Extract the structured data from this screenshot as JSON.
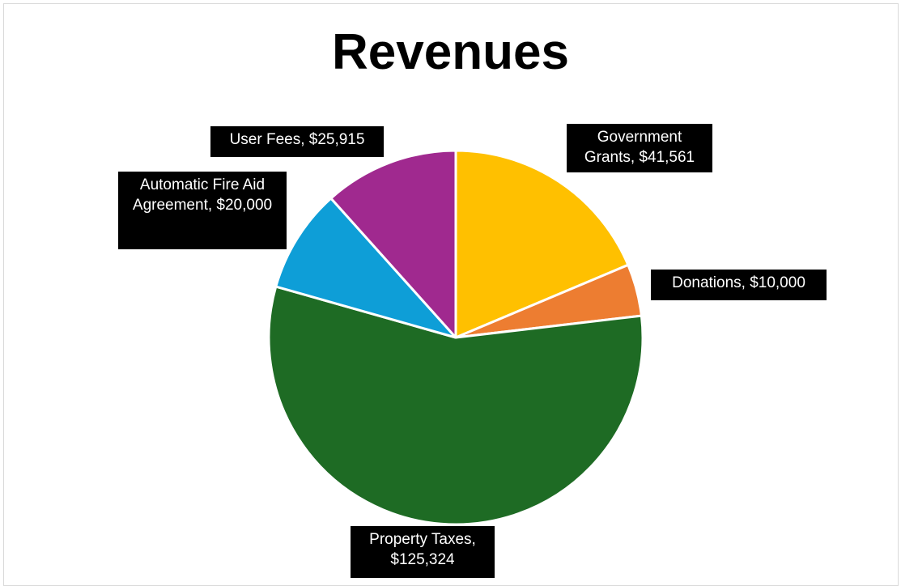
{
  "chart_data": {
    "type": "pie",
    "title": "Revenues",
    "categories": [
      "Government Grants",
      "Donations",
      "Property Taxes",
      "Automatic Fire Aid Agreement",
      "User Fees"
    ],
    "values": [
      41561,
      10000,
      125324,
      20000,
      25915
    ],
    "data_labels": [
      "Government Grants, $41,561",
      "Donations, $10,000",
      "Property Taxes, $125,324",
      "Automatic Fire Aid Agreement, $20,000",
      "User Fees, $25,915"
    ],
    "colors": [
      "#FFC000",
      "#ED7D31",
      "#1E6B24",
      "#0E9ED7",
      "#A0298F"
    ],
    "start_angle_deg": 0,
    "direction": "clockwise",
    "legend": "none",
    "label_style": "white text on black boxes"
  }
}
